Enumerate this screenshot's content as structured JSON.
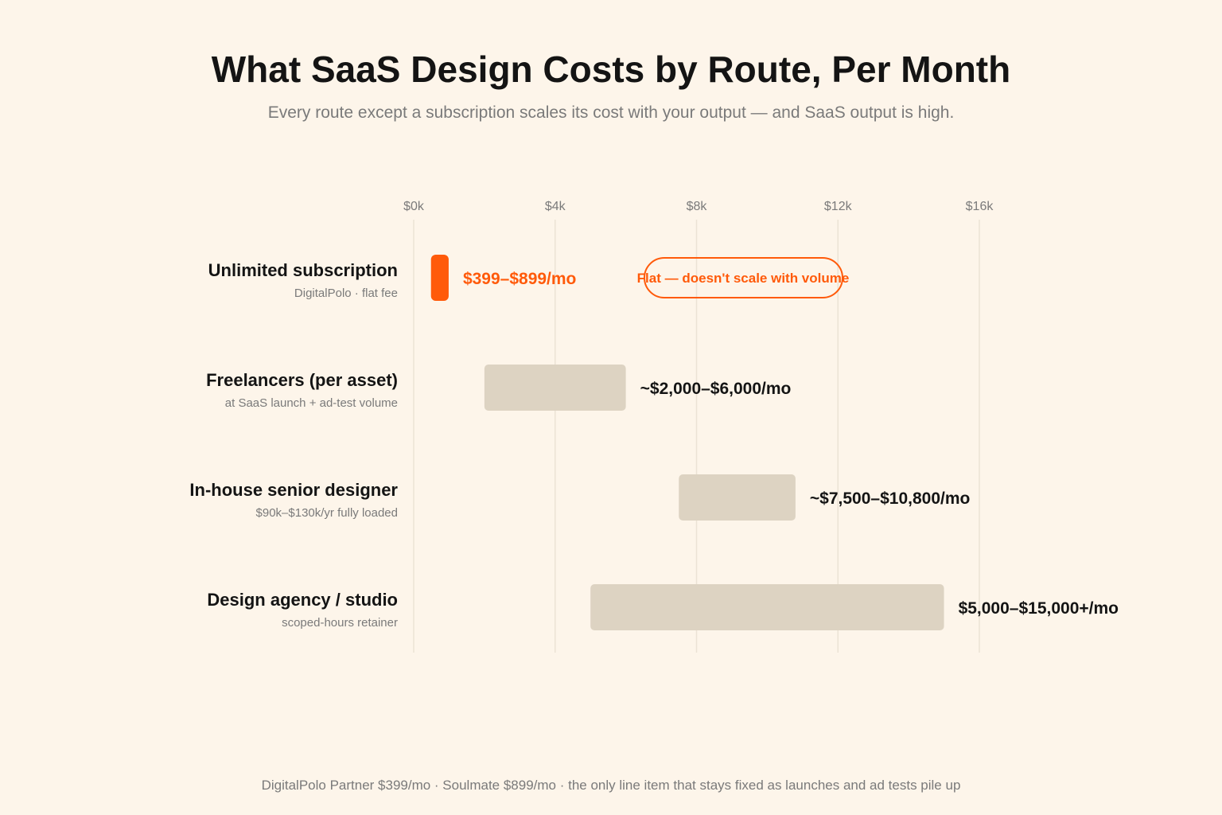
{
  "title": "What SaaS Design Costs by Route, Per Month",
  "subtitle": "Every route except a subscription scales its cost with your output — and SaaS output is high.",
  "footnote": "DigitalPolo Partner $399/mo · Soulmate $899/mo · the only line item that stays fixed as launches and ad tests pile up",
  "colors": {
    "background": "#fdf5ea",
    "accent": "#ff5a0a",
    "bar_neutral": "#ddd3c2",
    "gridline": "#ece3d5",
    "text_dark": "#141414",
    "text_muted": "#7a7a7a"
  },
  "chart_data": {
    "type": "bar",
    "orientation": "horizontal-range",
    "xlim": [
      0,
      16000
    ],
    "x_ticks": [
      {
        "value": 0,
        "label": "$0k"
      },
      {
        "value": 4000,
        "label": "$4k"
      },
      {
        "value": 8000,
        "label": "$8k"
      },
      {
        "value": 12000,
        "label": "$12k"
      },
      {
        "value": 16000,
        "label": "$16k"
      }
    ],
    "grid": true,
    "rows": [
      {
        "name": "Unlimited subscription",
        "sublabel": "DigitalPolo · flat fee",
        "low": 399,
        "high": 899,
        "value_label": "$399–$899/mo",
        "highlight": true,
        "annotation": "Flat — doesn't scale with volume"
      },
      {
        "name": "Freelancers (per asset)",
        "sublabel": "at SaaS launch + ad-test volume",
        "low": 2000,
        "high": 6000,
        "value_label": "~$2,000–$6,000/mo",
        "highlight": false
      },
      {
        "name": "In-house senior designer",
        "sublabel": "$90k–$130k/yr fully loaded",
        "low": 7500,
        "high": 10800,
        "value_label": "~$7,500–$10,800/mo",
        "highlight": false
      },
      {
        "name": "Design agency / studio",
        "sublabel": "scoped-hours retainer",
        "low": 5000,
        "high": 15000,
        "value_label": "$5,000–$15,000+/mo",
        "highlight": false
      }
    ]
  }
}
